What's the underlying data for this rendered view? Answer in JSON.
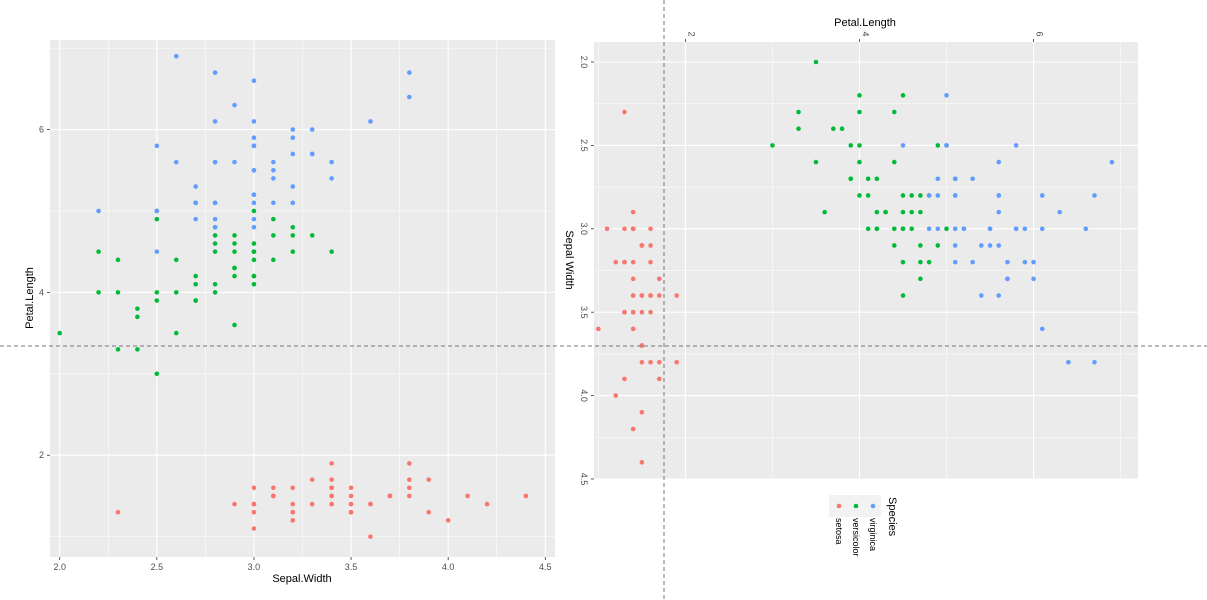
{
  "colors": {
    "setosa": "#F8766D",
    "versicolor": "#00BA38",
    "virginica": "#619CFF",
    "panel": "#EBEBEB",
    "grid": "#FFFFFF"
  },
  "chart_data": [
    {
      "type": "scatter",
      "title": "",
      "xlabel": "Sepal.Width",
      "ylabel": "Petal.Length",
      "xlim": [
        1.95,
        4.55
      ],
      "ylim": [
        0.75,
        7.1
      ],
      "x_ticks": [
        2.0,
        2.5,
        3.0,
        3.5,
        4.0,
        4.5
      ],
      "x_tick_labels": [
        "2.0",
        "2.5",
        "3.0",
        "3.5",
        "4.0",
        "4.5"
      ],
      "y_ticks": [
        2,
        4,
        6
      ],
      "y_tick_labels": [
        "2",
        "4",
        "6"
      ],
      "grid": true,
      "legend": "none",
      "series": [
        {
          "name": "setosa",
          "points": [
            [
              3.5,
              1.4
            ],
            [
              3.0,
              1.4
            ],
            [
              3.2,
              1.3
            ],
            [
              3.1,
              1.5
            ],
            [
              3.6,
              1.4
            ],
            [
              3.9,
              1.7
            ],
            [
              3.4,
              1.4
            ],
            [
              3.4,
              1.5
            ],
            [
              2.9,
              1.4
            ],
            [
              3.1,
              1.5
            ],
            [
              3.7,
              1.5
            ],
            [
              3.4,
              1.6
            ],
            [
              3.0,
              1.4
            ],
            [
              3.0,
              1.1
            ],
            [
              4.0,
              1.2
            ],
            [
              4.4,
              1.5
            ],
            [
              3.9,
              1.3
            ],
            [
              3.5,
              1.4
            ],
            [
              3.8,
              1.7
            ],
            [
              3.8,
              1.5
            ],
            [
              3.4,
              1.7
            ],
            [
              3.7,
              1.5
            ],
            [
              3.6,
              1.0
            ],
            [
              3.3,
              1.7
            ],
            [
              3.4,
              1.9
            ],
            [
              3.0,
              1.6
            ],
            [
              3.4,
              1.6
            ],
            [
              3.5,
              1.5
            ],
            [
              3.4,
              1.4
            ],
            [
              3.2,
              1.6
            ],
            [
              3.1,
              1.6
            ],
            [
              3.4,
              1.5
            ],
            [
              4.1,
              1.5
            ],
            [
              4.2,
              1.4
            ],
            [
              3.1,
              1.5
            ],
            [
              3.2,
              1.2
            ],
            [
              3.5,
              1.3
            ],
            [
              3.6,
              1.4
            ],
            [
              3.0,
              1.3
            ],
            [
              3.4,
              1.5
            ],
            [
              3.5,
              1.3
            ],
            [
              2.3,
              1.3
            ],
            [
              3.2,
              1.3
            ],
            [
              3.5,
              1.6
            ],
            [
              3.8,
              1.9
            ],
            [
              3.0,
              1.4
            ],
            [
              3.8,
              1.6
            ],
            [
              3.2,
              1.4
            ],
            [
              3.7,
              1.5
            ],
            [
              3.3,
              1.4
            ]
          ]
        },
        {
          "name": "versicolor",
          "points": [
            [
              3.2,
              4.7
            ],
            [
              3.2,
              4.5
            ],
            [
              3.1,
              4.9
            ],
            [
              2.3,
              4.0
            ],
            [
              2.8,
              4.6
            ],
            [
              2.8,
              4.5
            ],
            [
              3.3,
              4.7
            ],
            [
              2.4,
              3.3
            ],
            [
              2.9,
              4.6
            ],
            [
              2.7,
              3.9
            ],
            [
              2.0,
              3.5
            ],
            [
              3.0,
              4.2
            ],
            [
              2.2,
              4.0
            ],
            [
              2.9,
              4.7
            ],
            [
              2.9,
              3.6
            ],
            [
              3.1,
              4.4
            ],
            [
              3.0,
              4.5
            ],
            [
              2.7,
              4.1
            ],
            [
              2.2,
              4.5
            ],
            [
              2.5,
              3.9
            ],
            [
              3.2,
              4.8
            ],
            [
              2.8,
              4.0
            ],
            [
              2.5,
              4.9
            ],
            [
              2.8,
              4.7
            ],
            [
              2.9,
              4.3
            ],
            [
              3.0,
              4.4
            ],
            [
              2.8,
              4.8
            ],
            [
              3.0,
              5.0
            ],
            [
              2.9,
              4.5
            ],
            [
              2.6,
              3.5
            ],
            [
              2.4,
              3.8
            ],
            [
              2.4,
              3.7
            ],
            [
              2.7,
              3.9
            ],
            [
              2.7,
              5.1
            ],
            [
              3.0,
              4.5
            ],
            [
              3.4,
              4.5
            ],
            [
              3.1,
              4.7
            ],
            [
              2.3,
              4.4
            ],
            [
              3.0,
              4.1
            ],
            [
              2.5,
              4.0
            ],
            [
              2.6,
              4.4
            ],
            [
              3.0,
              4.6
            ],
            [
              2.6,
              4.0
            ],
            [
              2.3,
              3.3
            ],
            [
              2.7,
              4.2
            ],
            [
              3.0,
              4.2
            ],
            [
              2.9,
              4.2
            ],
            [
              2.9,
              4.3
            ],
            [
              2.5,
              3.0
            ],
            [
              2.8,
              4.1
            ]
          ]
        },
        {
          "name": "virginica",
          "points": [
            [
              3.3,
              6.0
            ],
            [
              2.7,
              5.1
            ],
            [
              3.0,
              5.9
            ],
            [
              2.9,
              5.6
            ],
            [
              3.0,
              5.8
            ],
            [
              3.0,
              6.6
            ],
            [
              2.5,
              4.5
            ],
            [
              2.9,
              6.3
            ],
            [
              2.5,
              5.8
            ],
            [
              3.6,
              6.1
            ],
            [
              3.2,
              5.1
            ],
            [
              2.7,
              5.3
            ],
            [
              3.0,
              5.5
            ],
            [
              2.5,
              5.0
            ],
            [
              2.8,
              5.1
            ],
            [
              3.2,
              5.3
            ],
            [
              3.0,
              5.5
            ],
            [
              3.8,
              6.7
            ],
            [
              2.6,
              6.9
            ],
            [
              2.2,
              5.0
            ],
            [
              3.2,
              5.7
            ],
            [
              2.8,
              4.9
            ],
            [
              2.8,
              6.7
            ],
            [
              2.7,
              4.9
            ],
            [
              3.3,
              5.7
            ],
            [
              3.2,
              6.0
            ],
            [
              2.8,
              4.8
            ],
            [
              3.0,
              4.9
            ],
            [
              2.8,
              5.6
            ],
            [
              3.0,
              5.8
            ],
            [
              2.8,
              6.1
            ],
            [
              3.8,
              6.4
            ],
            [
              2.8,
              5.6
            ],
            [
              2.8,
              5.1
            ],
            [
              2.6,
              5.6
            ],
            [
              3.0,
              6.1
            ],
            [
              3.4,
              5.6
            ],
            [
              3.1,
              5.5
            ],
            [
              3.0,
              4.8
            ],
            [
              3.1,
              5.4
            ],
            [
              3.1,
              5.6
            ],
            [
              3.1,
              5.1
            ],
            [
              2.7,
              5.1
            ],
            [
              3.2,
              5.9
            ],
            [
              3.3,
              5.7
            ],
            [
              3.0,
              5.2
            ],
            [
              2.5,
              5.0
            ],
            [
              3.0,
              5.2
            ],
            [
              3.4,
              5.4
            ],
            [
              3.0,
              5.1
            ]
          ]
        }
      ]
    },
    {
      "type": "scatter",
      "title": "",
      "xlabel": "Petal.Length",
      "ylabel": "Sepal Width",
      "xlim": [
        0.95,
        7.2
      ],
      "ylim": [
        2.0,
        4.5
      ],
      "x_axis_position": "top",
      "y_axis_reversed": true,
      "x_ticks": [
        2,
        4,
        6
      ],
      "x_tick_labels": [
        "2",
        "4",
        "6"
      ],
      "y_ticks": [
        2.0,
        2.5,
        3.0,
        3.5,
        4.0,
        4.5
      ],
      "y_tick_labels": [
        "2.0",
        "2.5",
        "3.0",
        "3.5",
        "4.0",
        "4.5"
      ],
      "grid": true,
      "legend": "bottom",
      "legend_title": "Species",
      "legend_entries": [
        "setosa",
        "versicolor",
        "virginica"
      ],
      "series_source": "same iris observations as chart 1 with axes swapped (x = Petal.Length, y = Sepal Width)"
    }
  ],
  "crosshair": {
    "visible": true,
    "style": "dashed"
  }
}
